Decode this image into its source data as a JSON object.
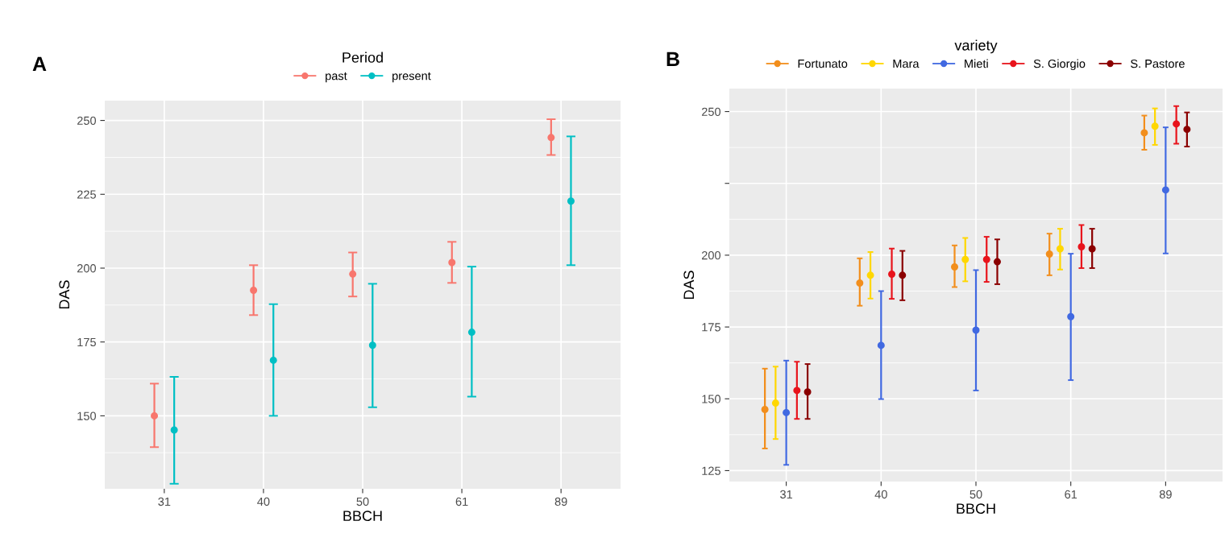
{
  "chart_data": [
    {
      "type": "scatter",
      "annotations": [
        "A"
      ],
      "xlabel": "BBCH",
      "ylabel": "DAS",
      "legend_title": "Period",
      "legend": "top",
      "grid": true,
      "marker": "circle",
      "categories": [
        "31",
        "40",
        "50",
        "61",
        "89"
      ],
      "ylim": [
        125.3,
        256.7
      ],
      "yticks": [
        150,
        175,
        200,
        225,
        250
      ],
      "series": [
        {
          "name": "past",
          "color": "#f8766d",
          "values": [
            150.0,
            192.5,
            198.0,
            201.9,
            244.2
          ],
          "errors": [
            [
              139.4,
              160.9
            ],
            [
              184.1,
              201.0
            ],
            [
              190.4,
              205.3
            ],
            [
              195.0,
              208.9
            ],
            [
              238.3,
              250.4
            ]
          ]
        },
        {
          "name": "present",
          "color": "#00bfc4",
          "values": [
            145.2,
            168.8,
            173.9,
            178.3,
            222.7
          ],
          "errors": [
            [
              127.0,
              163.2
            ],
            [
              150.0,
              187.8
            ],
            [
              152.9,
              194.7
            ],
            [
              156.5,
              200.5
            ],
            [
              201.0,
              244.6
            ]
          ]
        }
      ]
    },
    {
      "type": "scatter",
      "annotations": [
        "B"
      ],
      "xlabel": "BBCH",
      "ylabel": "DAS",
      "legend_title": "variety",
      "legend": "top",
      "grid": true,
      "marker": "circle",
      "categories": [
        "31",
        "40",
        "50",
        "61",
        "89"
      ],
      "ylim": [
        121.2,
        258
      ],
      "yticks": [
        125,
        150,
        175,
        200,
        {
          "value": 225,
          "label": null
        },
        250
      ],
      "series": [
        {
          "name": "Fortunato",
          "color": "#f28e1c",
          "values": [
            146.3,
            190.3,
            195.9,
            200.4,
            242.6
          ],
          "errors": [
            [
              132.7,
              160.5
            ],
            [
              182.4,
              198.9
            ],
            [
              188.9,
              203.4
            ],
            [
              193.0,
              207.5
            ],
            [
              236.7,
              248.6
            ]
          ]
        },
        {
          "name": "Mara",
          "color": "#ffd700",
          "values": [
            148.5,
            193.0,
            198.5,
            202.2,
            244.9
          ],
          "errors": [
            [
              136.0,
              161.2
            ],
            [
              184.9,
              201.1
            ],
            [
              190.9,
              206.0
            ],
            [
              195.0,
              209.2
            ],
            [
              238.4,
              251.1
            ]
          ]
        },
        {
          "name": "Mieti",
          "color": "#4169e1",
          "values": [
            145.2,
            168.6,
            173.9,
            178.6,
            222.7
          ],
          "errors": [
            [
              127.0,
              163.3
            ],
            [
              149.9,
              187.5
            ],
            [
              152.9,
              194.8
            ],
            [
              156.5,
              200.5
            ],
            [
              200.6,
              244.5
            ]
          ]
        },
        {
          "name": "S. Giorgio",
          "color": "#e8141c",
          "values": [
            152.9,
            193.4,
            198.5,
            202.9,
            245.7
          ],
          "errors": [
            [
              143.0,
              162.9
            ],
            [
              184.8,
              202.3
            ],
            [
              190.7,
              206.4
            ],
            [
              195.5,
              210.5
            ],
            [
              238.8,
              251.9
            ]
          ]
        },
        {
          "name": "S. Pastore",
          "color": "#8b0000",
          "values": [
            152.4,
            193.0,
            197.7,
            202.2,
            243.8
          ],
          "errors": [
            [
              143.0,
              162.1
            ],
            [
              184.3,
              201.5
            ],
            [
              189.9,
              205.5
            ],
            [
              195.5,
              209.2
            ],
            [
              237.8,
              249.7
            ]
          ]
        }
      ]
    }
  ]
}
